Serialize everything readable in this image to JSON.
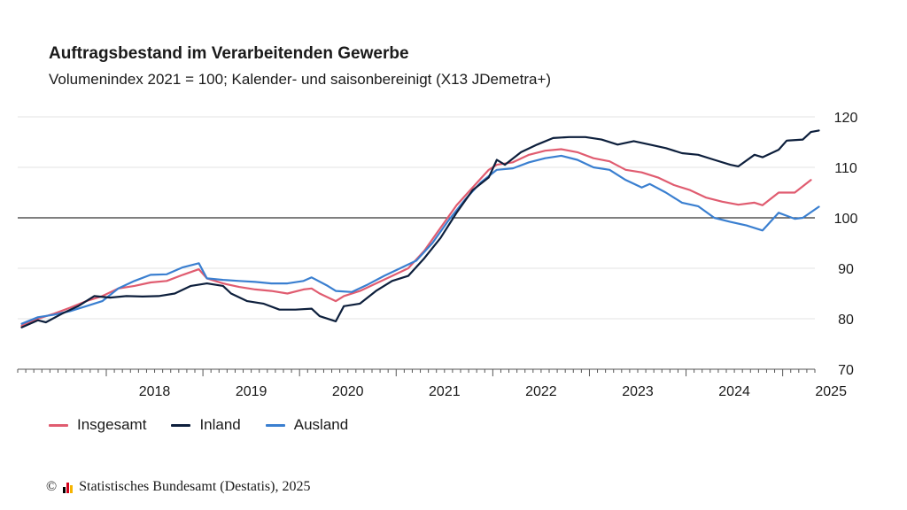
{
  "title": "Auftragsbestand im Verarbeitenden Gewerbe",
  "subtitle": "Volumenindex 2021 = 100; Kalender- und saisonbereinigt (X13 JDemetra+)",
  "footer": {
    "copyright": "©",
    "source": "Statistisches Bundesamt (Destatis), 2025",
    "logo_colors": [
      "#000000",
      "#d4001a",
      "#f5b400"
    ]
  },
  "colors": {
    "Insgesamt": "#e05c70",
    "Inland": "#0d1f3c",
    "Ausland": "#3a7fd0",
    "grid": "#e3e3e3",
    "baseline": "#333333"
  },
  "chart_data": {
    "type": "line",
    "xlabel": "",
    "ylabel": "",
    "ylim": [
      70,
      120
    ],
    "yticks": [
      70,
      80,
      90,
      100,
      110,
      120
    ],
    "y_axis_position": "right",
    "reference_line": 100,
    "grid": true,
    "legend_position": "bottom-left",
    "xticks": [
      "2018",
      "2019",
      "2020",
      "2021",
      "2022",
      "2023",
      "2024",
      "2025"
    ],
    "x_start": "2017-02",
    "x_end": "2025-04",
    "series": [
      {
        "name": "Insgesamt",
        "points": [
          [
            "2017-02",
            78.6
          ],
          [
            "2017-04",
            80.0
          ],
          [
            "2017-06",
            81.0
          ],
          [
            "2017-08",
            82.2
          ],
          [
            "2017-10",
            83.5
          ],
          [
            "2017-12",
            84.5
          ],
          [
            "2018-02",
            86.0
          ],
          [
            "2018-04",
            86.5
          ],
          [
            "2018-06",
            87.2
          ],
          [
            "2018-08",
            87.5
          ],
          [
            "2018-10",
            88.7
          ],
          [
            "2018-12",
            89.8
          ],
          [
            "2019-01",
            88.0
          ],
          [
            "2019-03",
            87.0
          ],
          [
            "2019-05",
            86.3
          ],
          [
            "2019-07",
            85.8
          ],
          [
            "2019-09",
            85.5
          ],
          [
            "2019-11",
            85.0
          ],
          [
            "2020-01",
            85.8
          ],
          [
            "2020-02",
            86.0
          ],
          [
            "2020-03",
            85.0
          ],
          [
            "2020-05",
            83.5
          ],
          [
            "2020-06",
            84.5
          ],
          [
            "2020-08",
            85.5
          ],
          [
            "2020-10",
            87.0
          ],
          [
            "2020-12",
            88.5
          ],
          [
            "2021-02",
            90.0
          ],
          [
            "2021-04",
            93.5
          ],
          [
            "2021-06",
            98.0
          ],
          [
            "2021-08",
            102.5
          ],
          [
            "2021-10",
            106.0
          ],
          [
            "2021-12",
            109.5
          ],
          [
            "2022-01",
            110.5
          ],
          [
            "2022-03",
            111.0
          ],
          [
            "2022-05",
            112.5
          ],
          [
            "2022-07",
            113.3
          ],
          [
            "2022-09",
            113.6
          ],
          [
            "2022-11",
            113.0
          ],
          [
            "2023-01",
            111.8
          ],
          [
            "2023-03",
            111.2
          ],
          [
            "2023-05",
            109.5
          ],
          [
            "2023-07",
            109.0
          ],
          [
            "2023-09",
            108.0
          ],
          [
            "2023-11",
            106.5
          ],
          [
            "2024-01",
            105.5
          ],
          [
            "2024-03",
            104.0
          ],
          [
            "2024-05",
            103.2
          ],
          [
            "2024-07",
            102.6
          ],
          [
            "2024-09",
            103.0
          ],
          [
            "2024-10",
            102.5
          ],
          [
            "2024-12",
            105.0
          ],
          [
            "2025-02",
            105.0
          ],
          [
            "2025-04",
            107.5
          ]
        ]
      },
      {
        "name": "Inland",
        "points": [
          [
            "2017-02",
            78.3
          ],
          [
            "2017-04",
            79.7
          ],
          [
            "2017-05",
            79.3
          ],
          [
            "2017-07",
            81.0
          ],
          [
            "2017-09",
            82.5
          ],
          [
            "2017-11",
            84.5
          ],
          [
            "2018-01",
            84.2
          ],
          [
            "2018-03",
            84.5
          ],
          [
            "2018-05",
            84.4
          ],
          [
            "2018-07",
            84.5
          ],
          [
            "2018-09",
            85.0
          ],
          [
            "2018-11",
            86.5
          ],
          [
            "2019-01",
            87.0
          ],
          [
            "2019-03",
            86.5
          ],
          [
            "2019-04",
            85.0
          ],
          [
            "2019-06",
            83.5
          ],
          [
            "2019-08",
            83.0
          ],
          [
            "2019-10",
            81.8
          ],
          [
            "2019-12",
            81.8
          ],
          [
            "2020-02",
            82.0
          ],
          [
            "2020-03",
            80.5
          ],
          [
            "2020-05",
            79.5
          ],
          [
            "2020-06",
            82.5
          ],
          [
            "2020-08",
            83.0
          ],
          [
            "2020-10",
            85.5
          ],
          [
            "2020-12",
            87.5
          ],
          [
            "2021-02",
            88.5
          ],
          [
            "2021-04",
            92.0
          ],
          [
            "2021-06",
            96.0
          ],
          [
            "2021-08",
            101.0
          ],
          [
            "2021-10",
            105.5
          ],
          [
            "2021-12",
            108.0
          ],
          [
            "2022-01",
            111.5
          ],
          [
            "2022-02",
            110.5
          ],
          [
            "2022-04",
            113.0
          ],
          [
            "2022-06",
            114.5
          ],
          [
            "2022-08",
            115.8
          ],
          [
            "2022-10",
            116.0
          ],
          [
            "2022-12",
            116.0
          ],
          [
            "2023-02",
            115.5
          ],
          [
            "2023-04",
            114.5
          ],
          [
            "2023-06",
            115.2
          ],
          [
            "2023-08",
            114.5
          ],
          [
            "2023-10",
            113.8
          ],
          [
            "2023-12",
            112.8
          ],
          [
            "2024-02",
            112.5
          ],
          [
            "2024-04",
            111.5
          ],
          [
            "2024-06",
            110.5
          ],
          [
            "2024-07",
            110.2
          ],
          [
            "2024-09",
            112.5
          ],
          [
            "2024-10",
            112.0
          ],
          [
            "2024-12",
            113.5
          ],
          [
            "2025-01",
            115.3
          ],
          [
            "2025-03",
            115.5
          ],
          [
            "2025-04",
            117.0
          ],
          [
            "2025-05",
            117.3
          ]
        ]
      },
      {
        "name": "Ausland",
        "points": [
          [
            "2017-02",
            79.0
          ],
          [
            "2017-04",
            80.3
          ],
          [
            "2017-06",
            80.8
          ],
          [
            "2017-08",
            81.5
          ],
          [
            "2017-10",
            82.5
          ],
          [
            "2017-12",
            83.5
          ],
          [
            "2018-02",
            86.0
          ],
          [
            "2018-04",
            87.5
          ],
          [
            "2018-06",
            88.7
          ],
          [
            "2018-08",
            88.8
          ],
          [
            "2018-10",
            90.2
          ],
          [
            "2018-12",
            91.0
          ],
          [
            "2019-01",
            88.0
          ],
          [
            "2019-03",
            87.7
          ],
          [
            "2019-05",
            87.5
          ],
          [
            "2019-07",
            87.3
          ],
          [
            "2019-09",
            87.0
          ],
          [
            "2019-11",
            87.0
          ],
          [
            "2020-01",
            87.5
          ],
          [
            "2020-02",
            88.2
          ],
          [
            "2020-04",
            86.5
          ],
          [
            "2020-05",
            85.5
          ],
          [
            "2020-07",
            85.3
          ],
          [
            "2020-09",
            86.8
          ],
          [
            "2020-11",
            88.5
          ],
          [
            "2021-01",
            90.0
          ],
          [
            "2021-03",
            91.5
          ],
          [
            "2021-05",
            95.0
          ],
          [
            "2021-07",
            99.5
          ],
          [
            "2021-09",
            103.5
          ],
          [
            "2021-11",
            107.0
          ],
          [
            "2022-01",
            109.5
          ],
          [
            "2022-03",
            109.8
          ],
          [
            "2022-05",
            111.0
          ],
          [
            "2022-07",
            111.8
          ],
          [
            "2022-09",
            112.3
          ],
          [
            "2022-11",
            111.5
          ],
          [
            "2023-01",
            110.0
          ],
          [
            "2023-03",
            109.5
          ],
          [
            "2023-05",
            107.5
          ],
          [
            "2023-07",
            106.0
          ],
          [
            "2023-08",
            106.7
          ],
          [
            "2023-10",
            105.0
          ],
          [
            "2023-12",
            103.0
          ],
          [
            "2024-02",
            102.3
          ],
          [
            "2024-04",
            100.0
          ],
          [
            "2024-06",
            99.2
          ],
          [
            "2024-08",
            98.5
          ],
          [
            "2024-10",
            97.5
          ],
          [
            "2024-12",
            101.0
          ],
          [
            "2025-02",
            99.8
          ],
          [
            "2025-03",
            100.0
          ],
          [
            "2025-05",
            102.2
          ]
        ]
      }
    ]
  }
}
